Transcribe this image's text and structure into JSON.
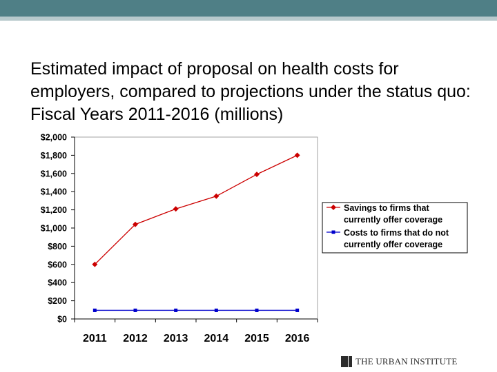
{
  "slide": {
    "title": "Estimated impact of proposal on health costs for employers, compared to projections under the status quo: Fiscal Years 2011-2016 (millions)"
  },
  "footer": {
    "logo_text": "THE URBAN INSTITUTE"
  },
  "colors": {
    "header_bar": "#4f7f86",
    "header_stripe": "#b7c9cc",
    "series_savings": "#cc0000",
    "series_costs": "#0000cc"
  },
  "chart_data": {
    "type": "line",
    "categories": [
      "2011",
      "2012",
      "2013",
      "2014",
      "2015",
      "2016"
    ],
    "series": [
      {
        "name": "Savings to firms that currently offer coverage",
        "values": [
          600,
          1040,
          1210,
          1350,
          1590,
          1800
        ],
        "color": "#cc0000",
        "marker": "diamond"
      },
      {
        "name": "Costs to firms that do not currently offer coverage",
        "values": [
          95,
          95,
          95,
          95,
          95,
          95
        ],
        "color": "#0000cc",
        "marker": "square"
      }
    ],
    "yticks": [
      "$0",
      "$200",
      "$400",
      "$600",
      "$800",
      "$1,000",
      "$1,200",
      "$1,400",
      "$1,600",
      "$1,800",
      "$2,000"
    ],
    "ylim": [
      0,
      2000
    ],
    "legend_position": "right",
    "grid": false
  }
}
